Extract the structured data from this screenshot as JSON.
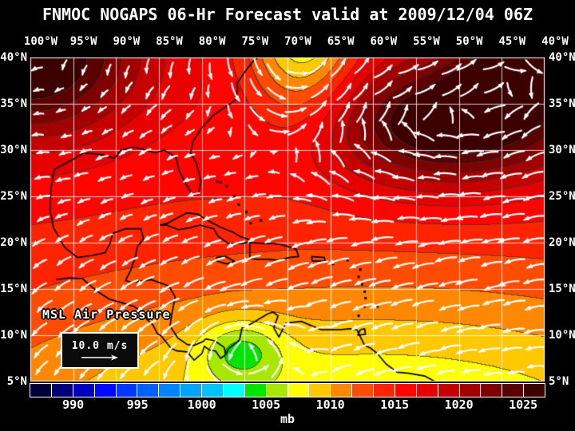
{
  "header": {
    "title": "FNMOC NOGAPS 06-Hr Forecast valid at 2009/12/04 06Z"
  },
  "map": {
    "field_label": "MSL Air Pressure",
    "wind_scale_label": "10.0 m/s",
    "longitude_labels": [
      "100°W",
      "95°W",
      "90°W",
      "85°W",
      "80°W",
      "75°W",
      "70°W",
      "65°W",
      "60°W",
      "55°W",
      "50°W",
      "45°W",
      "40°W"
    ],
    "latitude_labels": [
      "40°N",
      "35°N",
      "30°N",
      "25°N",
      "20°N",
      "15°N",
      "10°N",
      "5°N"
    ],
    "extent": {
      "lon_west": 100,
      "lon_east": 40,
      "lat_south": 5,
      "lat_north": 40,
      "grid_interval_deg": 5
    }
  },
  "colorbar": {
    "units_label": "mb",
    "tick_labels": [
      "990",
      "995",
      "1000",
      "1005",
      "1010",
      "1015",
      "1020",
      "1025"
    ],
    "tick_values": [
      990,
      995,
      1000,
      1005,
      1010,
      1015,
      1020,
      1025
    ],
    "value_min": 986.67,
    "value_step": 1.6667,
    "colors": [
      "#000038",
      "#000078",
      "#0000C0",
      "#0008FF",
      "#0038FF",
      "#0060FF",
      "#0084FF",
      "#00A4FF",
      "#00C4FF",
      "#00FFFF",
      "#00E400",
      "#A8E800",
      "#FFFF00",
      "#FFC800",
      "#FF8800",
      "#FF4C00",
      "#FF2400",
      "#FF0400",
      "#E60000",
      "#C60000",
      "#A20000",
      "#7E0000",
      "#5A0000",
      "#3C0000"
    ]
  },
  "theme": {
    "background": "#000000",
    "text": "#FFFFFF",
    "grid_lines": "rgba(255,255,255,0.8)",
    "contour_lines": "#282422",
    "coastlines": "#000000",
    "wind_arrows": "#FFFFFF"
  },
  "chart_data": {
    "type": "heatmap",
    "title": "FNMOC NOGAPS 06-Hr Forecast valid at 2009/12/04 06Z",
    "field": "MSL Air Pressure",
    "units": "mb",
    "overlay": "surface wind vectors, reference arrow = 10.0 m/s",
    "x": {
      "label": "longitude",
      "ticks_deg_west": [
        100,
        95,
        90,
        85,
        80,
        75,
        70,
        65,
        60,
        55,
        50,
        45,
        40
      ]
    },
    "y": {
      "label": "latitude",
      "ticks_deg_north": [
        40,
        35,
        30,
        25,
        20,
        15,
        10,
        5
      ]
    },
    "colorbar_ticks_mb": [
      990,
      995,
      1000,
      1005,
      1010,
      1015,
      1020,
      1025
    ],
    "grid": true,
    "legend_position": "bottom colorbar",
    "pressure_features": [
      {
        "feature": "high center",
        "approx_location": "99W 40N (south-central US)",
        "approx_value_mb": 1027
      },
      {
        "feature": "subtropical Atlantic high center",
        "approx_location": "50W 33N",
        "approx_value_mb": 1027
      },
      {
        "feature": "trough / relative low at north edge",
        "approx_location": "68W 40N",
        "approx_value_mb": 1009
      },
      {
        "feature": "low pressure band along south edge",
        "approx_location": "5N across map",
        "approx_value_mb": 1008
      },
      {
        "feature": "local low (green spot near Panama/Colombia)",
        "approx_location": "76W 8N",
        "approx_value_mb": 1005
      }
    ],
    "wind_pattern": "easterly trade winds south of ~20N; clockwise (anticyclonic) gyre around the Atlantic high; weak winds over the Gulf-coast high; southwesterlies along the US east coast trough"
  }
}
